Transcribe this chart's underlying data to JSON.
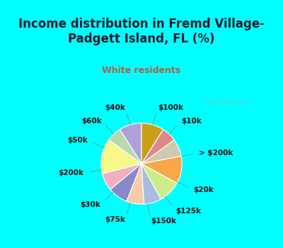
{
  "title": "Income distribution in Fremd Village-\nPadgett Island, FL (%)",
  "subtitle": "White residents",
  "background_top": "#00ffff",
  "background_chart_color": "#dff0e8",
  "title_color": "#1a1a2e",
  "subtitle_color": "#b06040",
  "watermark": "City-Data.com",
  "labels": [
    "$100k",
    "$10k",
    "> $200k",
    "$20k",
    "$125k",
    "$150k",
    "$75k",
    "$30k",
    "$200k",
    "$50k",
    "$60k",
    "$40k"
  ],
  "values": [
    9,
    6,
    14,
    7,
    8,
    7,
    7,
    9,
    11,
    7,
    6,
    9
  ],
  "colors": [
    "#b0a0d8",
    "#b8d8b0",
    "#f8f888",
    "#f0b0c0",
    "#8888cc",
    "#f8ccaa",
    "#aabce0",
    "#ccee88",
    "#f8a848",
    "#d0c8b0",
    "#e08888",
    "#c8a018"
  ],
  "startangle": 90,
  "label_fontsize": 7.5,
  "label_color": "#111111",
  "title_fontsize": 12,
  "subtitle_fontsize": 9
}
